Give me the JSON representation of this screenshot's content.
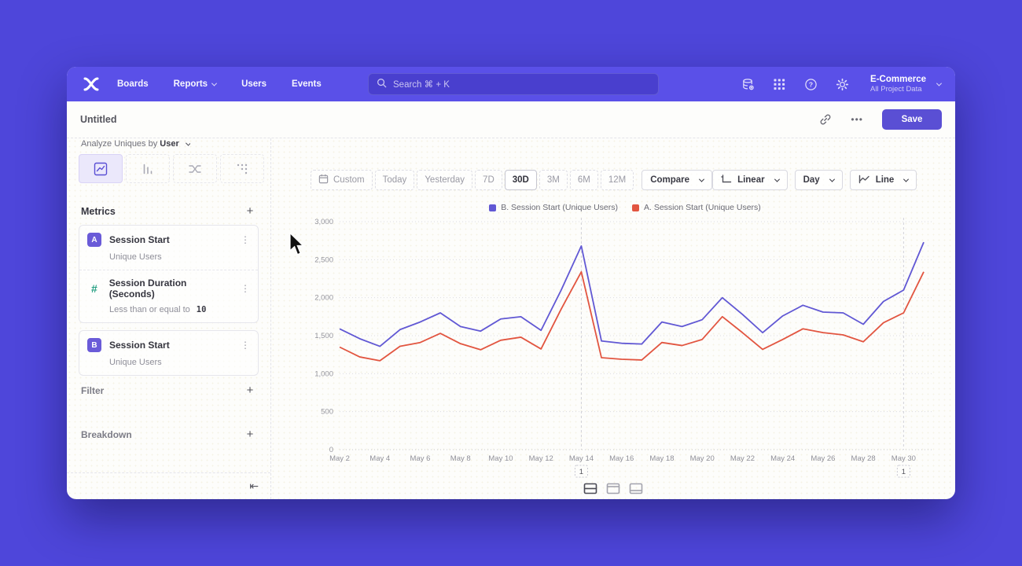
{
  "colors": {
    "page_bg": "#4e46da",
    "nav_bg": "#5a50e8",
    "accent": "#5a4fd4",
    "series_b_color": "#6158d4",
    "series_a_color": "#e25540",
    "hash_icon_color": "#27a083"
  },
  "nav": {
    "links": [
      "Boards",
      "Reports",
      "Users",
      "Events"
    ],
    "dropdown_links": [
      "Reports"
    ],
    "search_placeholder": "Search  ⌘ + K",
    "project_name": "E-Commerce",
    "project_scope": "All Project Data",
    "icons": [
      "data-pipeline-icon",
      "apps-grid-icon",
      "help-icon",
      "settings-gear-icon"
    ]
  },
  "header": {
    "title": "Untitled",
    "more_label": "•••",
    "save_label": "Save"
  },
  "sidebar": {
    "analyze_prefix": "Analyze Uniques by",
    "analyze_value": "User",
    "chart_tabs": [
      "line-chart-icon",
      "bar-chart-icon",
      "flows-icon",
      "dots-grid-icon"
    ],
    "metrics_title": "Metrics",
    "plus_glyph": "+",
    "kebab_glyph": "⋮",
    "collapse_glyph": "⇤",
    "metric_groups": [
      [
        {
          "badge": "A",
          "badge_style": "letter",
          "title": "Session Start",
          "subtitle": "Unique Users"
        },
        {
          "badge": "#",
          "badge_style": "hash",
          "title": "Session Duration (Seconds)",
          "subtitle": "Less than or equal to",
          "subtitle_value": "10"
        }
      ],
      [
        {
          "badge": "B",
          "badge_style": "letter",
          "title": "Session Start",
          "subtitle": "Unique Users"
        }
      ]
    ],
    "sections": [
      "Filter",
      "Breakdown"
    ]
  },
  "toolbar": {
    "ranges": [
      "Custom",
      "Today",
      "Yesterday",
      "7D",
      "30D",
      "3M",
      "6M",
      "12M"
    ],
    "active_range": "30D",
    "compare_label": "Compare",
    "scale_label": "Linear",
    "interval_label": "Day",
    "chart_type_label": "Line"
  },
  "chart_data": {
    "type": "line",
    "title": "",
    "x": [
      "May 2",
      "May 3",
      "May 4",
      "May 5",
      "May 6",
      "May 7",
      "May 8",
      "May 9",
      "May 10",
      "May 11",
      "May 12",
      "May 13",
      "May 14",
      "May 15",
      "May 16",
      "May 17",
      "May 18",
      "May 19",
      "May 20",
      "May 21",
      "May 22",
      "May 23",
      "May 24",
      "May 25",
      "May 26",
      "May 27",
      "May 28",
      "May 29",
      "May 30",
      "May 31"
    ],
    "x_tick_step": 2,
    "ylim": [
      0,
      3000
    ],
    "yticks": [
      0,
      500,
      1000,
      1500,
      2000,
      2500,
      3000
    ],
    "grid": "horizontal-dotted",
    "legend_position": "top-center",
    "series": [
      {
        "name": "B. Session Start (Unique Users)",
        "color": "#6158d4",
        "values": [
          1590,
          1460,
          1360,
          1580,
          1680,
          1800,
          1620,
          1560,
          1720,
          1750,
          1570,
          2100,
          2680,
          1430,
          1400,
          1390,
          1680,
          1620,
          1710,
          2000,
          1780,
          1540,
          1760,
          1900,
          1810,
          1800,
          1650,
          1950,
          2100,
          2730
        ]
      },
      {
        "name": "A. Session Start (Unique Users)",
        "color": "#e25540",
        "values": [
          1350,
          1220,
          1170,
          1360,
          1410,
          1530,
          1395,
          1315,
          1440,
          1480,
          1325,
          1850,
          2340,
          1210,
          1190,
          1180,
          1410,
          1370,
          1450,
          1750,
          1540,
          1320,
          1450,
          1590,
          1540,
          1510,
          1420,
          1670,
          1800,
          2340
        ]
      }
    ],
    "annotations": [
      {
        "x": "May 14",
        "label": "1"
      },
      {
        "x": "May 30",
        "label": "1"
      }
    ]
  }
}
